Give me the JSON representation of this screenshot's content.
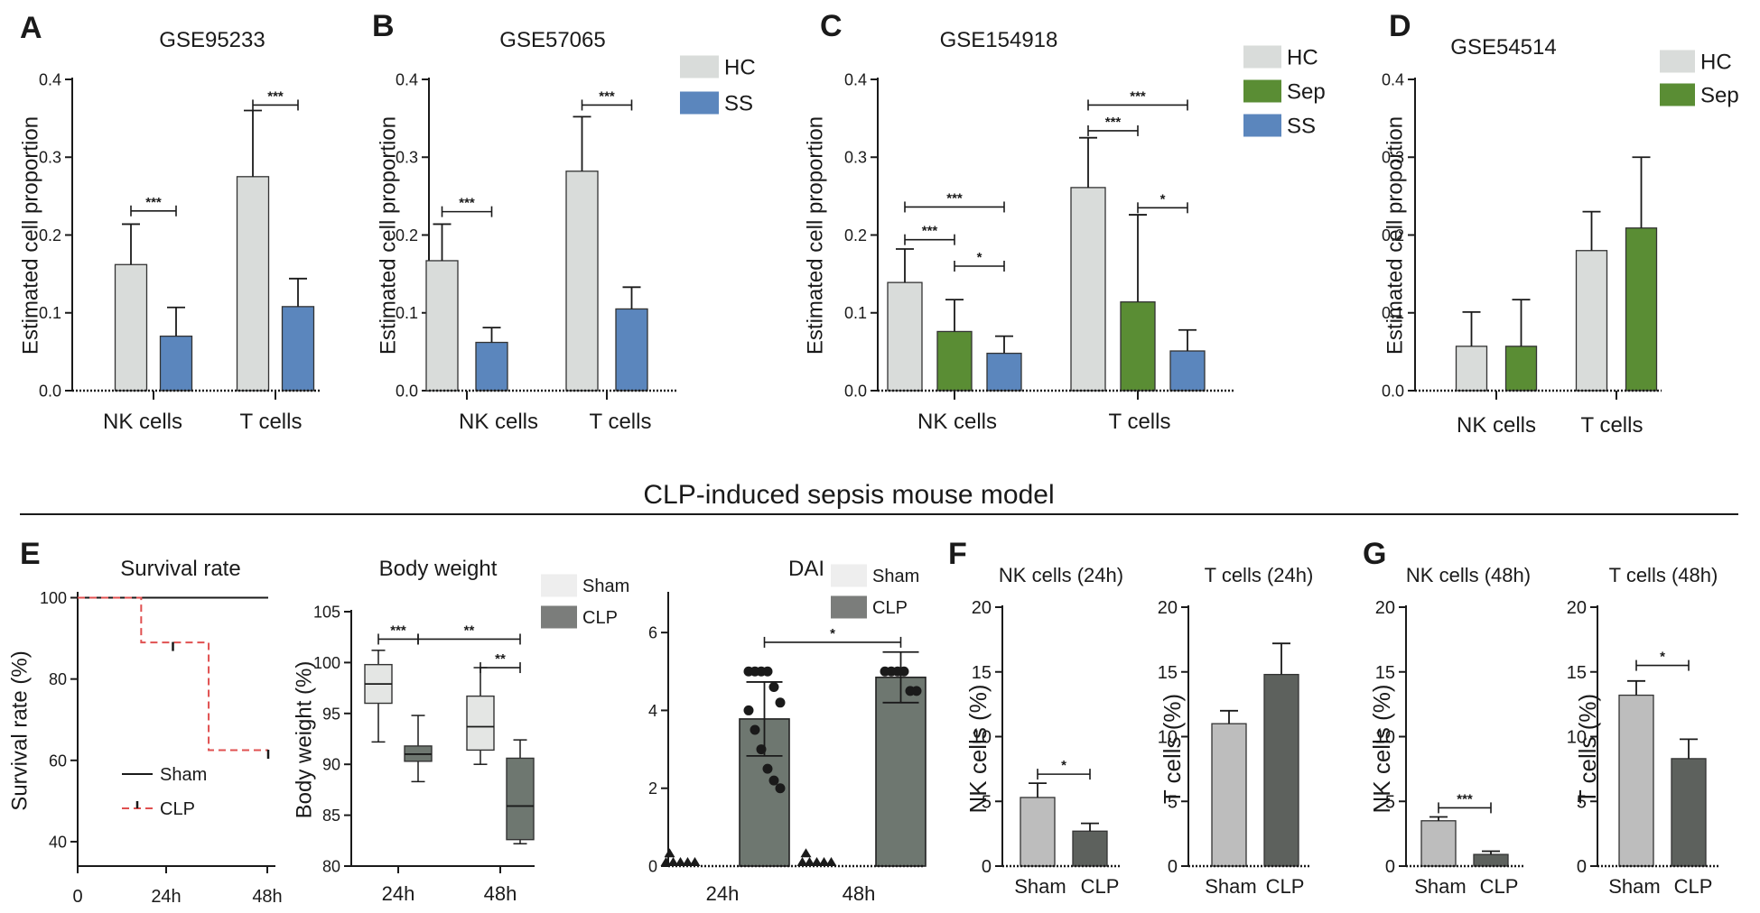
{
  "section_title": "CLP-induced sepsis mouse model",
  "colors": {
    "HC": "#d9dcda",
    "SS": "#5b86bd",
    "Sep": "#5a8d34",
    "Sham": "#bdbdbd",
    "CLP": "#5d615d",
    "box_sham": "#e4e6e4",
    "box_clp": "#6e7770",
    "sham_legend": "#eeeeee",
    "clp_legend": "#7b7d7b"
  },
  "chart_data": [
    {
      "id": "A",
      "type": "bar",
      "letter": "A",
      "title": "GSE95233",
      "ylabel": "Estimated cell proportion",
      "ylim": [
        0,
        0.4
      ],
      "yticks": [
        "0.0",
        "0.1",
        "0.2",
        "0.3",
        "0.4"
      ],
      "yvals": [
        0,
        0.1,
        0.2,
        0.3,
        0.4
      ],
      "categories": [
        "NK cells",
        "T cells"
      ],
      "series": [
        {
          "name": "HC",
          "values": [
            0.162,
            0.275
          ],
          "errors": [
            0.052,
            0.085
          ]
        },
        {
          "name": "SS",
          "values": [
            0.07,
            0.108
          ],
          "errors": [
            0.037,
            0.036
          ]
        }
      ],
      "legend": [],
      "sig": [
        {
          "label": "***",
          "group": 0,
          "from": 0,
          "to": 1,
          "y": 0.231
        },
        {
          "label": "***",
          "group": 1,
          "from": 0,
          "to": 1,
          "y": 0.367
        }
      ]
    },
    {
      "id": "B",
      "type": "bar",
      "letter": "B",
      "title": "GSE57065",
      "ylabel": "Estimated cell proportion",
      "ylim": [
        0,
        0.4
      ],
      "yticks": [
        "0.0",
        "0.1",
        "0.2",
        "0.3",
        "0.4"
      ],
      "yvals": [
        0,
        0.1,
        0.2,
        0.3,
        0.4
      ],
      "categories": [
        "NK cells",
        "T cells"
      ],
      "series": [
        {
          "name": "HC",
          "values": [
            0.167,
            0.282
          ],
          "errors": [
            0.047,
            0.07
          ]
        },
        {
          "name": "SS",
          "values": [
            0.062,
            0.105
          ],
          "errors": [
            0.019,
            0.028
          ]
        }
      ],
      "legend": [
        "HC",
        "SS"
      ],
      "sig": [
        {
          "label": "***",
          "group": 0,
          "from": 0,
          "to": 1,
          "y": 0.23
        },
        {
          "label": "***",
          "group": 1,
          "from": 0,
          "to": 1,
          "y": 0.367
        }
      ]
    },
    {
      "id": "C",
      "type": "bar",
      "letter": "C",
      "title": "GSE154918",
      "ylabel": "Estimated cell proportion",
      "ylim": [
        0,
        0.4
      ],
      "yticks": [
        "0.0",
        "0.1",
        "0.2",
        "0.3",
        "0.4"
      ],
      "yvals": [
        0,
        0.1,
        0.2,
        0.3,
        0.4
      ],
      "categories": [
        "NK cells",
        "T cells"
      ],
      "series": [
        {
          "name": "HC",
          "values": [
            0.139,
            0.261
          ],
          "errors": [
            0.043,
            0.064
          ]
        },
        {
          "name": "Sep",
          "values": [
            0.076,
            0.114
          ],
          "errors": [
            0.041,
            0.112
          ]
        },
        {
          "name": "SS",
          "values": [
            0.048,
            0.051
          ],
          "errors": [
            0.022,
            0.027
          ]
        }
      ],
      "legend": [
        "HC",
        "Sep",
        "SS"
      ],
      "sig": [
        {
          "label": "***",
          "group": 0,
          "from": 0,
          "to": 2,
          "y": 0.236
        },
        {
          "label": "***",
          "group": 0,
          "from": 0,
          "to": 1,
          "y": 0.194
        },
        {
          "label": "*",
          "group": 0,
          "from": 1,
          "to": 2,
          "y": 0.16
        },
        {
          "label": "***",
          "group": 1,
          "from": 0,
          "to": 2,
          "y": 0.367
        },
        {
          "label": "***",
          "group": 1,
          "from": 0,
          "to": 1,
          "y": 0.334
        },
        {
          "label": "*",
          "group": 1,
          "from": 1,
          "to": 2,
          "y": 0.235
        }
      ]
    },
    {
      "id": "D",
      "type": "bar",
      "letter": "D",
      "title": "GSE54514",
      "ylabel": "Estimated cell proportion",
      "ylim": [
        0,
        0.4
      ],
      "yticks": [
        "0.0",
        "0.1",
        "0.2",
        "0.3",
        "0.4"
      ],
      "yvals": [
        0,
        0.1,
        0.2,
        0.3,
        0.4
      ],
      "categories": [
        "NK cells",
        "T cells"
      ],
      "series": [
        {
          "name": "HC",
          "values": [
            0.057,
            0.18
          ],
          "errors": [
            0.044,
            0.05
          ]
        },
        {
          "name": "Sep",
          "values": [
            0.057,
            0.209
          ],
          "errors": [
            0.06,
            0.091
          ]
        }
      ],
      "legend": [
        "HC",
        "Sep"
      ],
      "sig": []
    },
    {
      "id": "E1",
      "type": "line",
      "letter": "E",
      "title": "Survival rate",
      "ylabel": "Survival rate (%)",
      "ylim": [
        34,
        101
      ],
      "yticks": [
        "40",
        "60",
        "80",
        "100"
      ],
      "yvals": [
        40,
        60,
        80,
        100
      ],
      "xticks": [
        "0",
        "24h",
        "48h"
      ],
      "series": [
        {
          "name": "Sham",
          "steps": [
            [
              0,
              100
            ],
            [
              48,
              100
            ]
          ]
        },
        {
          "name": "CLP",
          "steps": [
            [
              0,
              100
            ],
            [
              16,
              100
            ],
            [
              16,
              89
            ],
            [
              33,
              89
            ],
            [
              33,
              62.5
            ],
            [
              48,
              62.5
            ]
          ],
          "censor": [
            [
              24,
              88
            ],
            [
              48,
              61.5
            ]
          ]
        }
      ],
      "legend": [
        "Sham",
        "CLP"
      ]
    },
    {
      "id": "E2",
      "type": "box",
      "title": "Body weight",
      "ylabel": "Body weight (%)",
      "ylim": [
        80,
        105
      ],
      "yticks": [
        "80",
        "85",
        "90",
        "95",
        "100",
        "105"
      ],
      "yvals": [
        80,
        85,
        90,
        95,
        100,
        105
      ],
      "categories": [
        "24h",
        "48h"
      ],
      "series": [
        {
          "name": "Sham",
          "boxes": [
            {
              "min": 92.2,
              "q1": 96.0,
              "median": 97.9,
              "q3": 99.8,
              "max": 101.2
            },
            {
              "min": 90.0,
              "q1": 91.4,
              "median": 93.7,
              "q3": 96.7,
              "max": 99.5
            }
          ]
        },
        {
          "name": "CLP",
          "boxes": [
            {
              "min": 88.3,
              "q1": 90.3,
              "median": 91.0,
              "q3": 91.8,
              "max": 94.8
            },
            {
              "min": 82.2,
              "q1": 82.6,
              "median": 85.9,
              "q3": 90.6,
              "max": 92.4
            }
          ]
        }
      ],
      "legend": [
        "Sham",
        "CLP"
      ],
      "sig": [
        {
          "label": "***",
          "a": [
            0,
            0
          ],
          "b": [
            0,
            1
          ],
          "y": 102.3
        },
        {
          "label": "**",
          "a": [
            0,
            1
          ],
          "b": [
            1,
            1
          ],
          "y": 102.3
        },
        {
          "label": "**",
          "a": [
            1,
            0
          ],
          "b": [
            1,
            1
          ],
          "y": 99.5
        }
      ]
    },
    {
      "id": "E3",
      "type": "bar",
      "title": "DAI",
      "ylabel": "",
      "ylim": [
        0,
        7
      ],
      "yticks": [
        "0",
        "2",
        "4",
        "6"
      ],
      "yvals": [
        0,
        2,
        4,
        6
      ],
      "categories": [
        "24h",
        "48h"
      ],
      "series": [
        {
          "name": "Sham",
          "values": [
            0.05,
            0.05
          ],
          "errors": [
            0,
            0
          ]
        },
        {
          "name": "CLP",
          "values": [
            3.78,
            4.85
          ],
          "errors": [
            0.95,
            0.65
          ]
        }
      ],
      "legend": [
        "Sham",
        "CLP"
      ],
      "sig": [
        {
          "label": "*",
          "a": [
            0,
            1
          ],
          "b": [
            1,
            1
          ],
          "y": 5.75
        }
      ]
    },
    {
      "id": "F1",
      "type": "bar",
      "letter": "F",
      "title": "NK cells (24h)",
      "ylabel": "NK cells (%)",
      "ylim": [
        0,
        20
      ],
      "yticks": [
        "0",
        "5",
        "10",
        "15",
        "20"
      ],
      "yvals": [
        0,
        5,
        10,
        15,
        20
      ],
      "categories": [
        "Sham",
        "CLP"
      ],
      "values": [
        5.3,
        2.7
      ],
      "errors": [
        1.1,
        0.6
      ],
      "sig": [
        {
          "label": "*",
          "y": 7.1
        }
      ]
    },
    {
      "id": "F2",
      "type": "bar",
      "title": "T cells (24h)",
      "ylabel": "T cells (%)",
      "ylim": [
        0,
        20
      ],
      "yticks": [
        "0",
        "5",
        "10",
        "15",
        "20"
      ],
      "yvals": [
        0,
        5,
        10,
        15,
        20
      ],
      "categories": [
        "Sham",
        "CLP"
      ],
      "values": [
        11.0,
        14.8
      ],
      "errors": [
        1.0,
        2.4
      ],
      "sig": []
    },
    {
      "id": "G1",
      "type": "bar",
      "letter": "G",
      "title": "NK cells (48h)",
      "ylabel": "NK cells (%)",
      "ylim": [
        0,
        20
      ],
      "yticks": [
        "0",
        "5",
        "10",
        "15",
        "20"
      ],
      "yvals": [
        0,
        5,
        10,
        15,
        20
      ],
      "categories": [
        "Sham",
        "CLP"
      ],
      "values": [
        3.5,
        0.9
      ],
      "errors": [
        0.3,
        0.25
      ],
      "sig": [
        {
          "label": "***",
          "y": 4.5
        }
      ]
    },
    {
      "id": "G2",
      "type": "bar",
      "title": "T cells (48h)",
      "ylabel": "T cells (%)",
      "ylim": [
        0,
        20
      ],
      "yticks": [
        "0",
        "5",
        "10",
        "15",
        "20"
      ],
      "yvals": [
        0,
        5,
        10,
        15,
        20
      ],
      "categories": [
        "Sham",
        "CLP"
      ],
      "values": [
        13.2,
        8.3
      ],
      "errors": [
        1.1,
        1.5
      ],
      "sig": [
        {
          "label": "*",
          "y": 15.5
        }
      ]
    }
  ]
}
